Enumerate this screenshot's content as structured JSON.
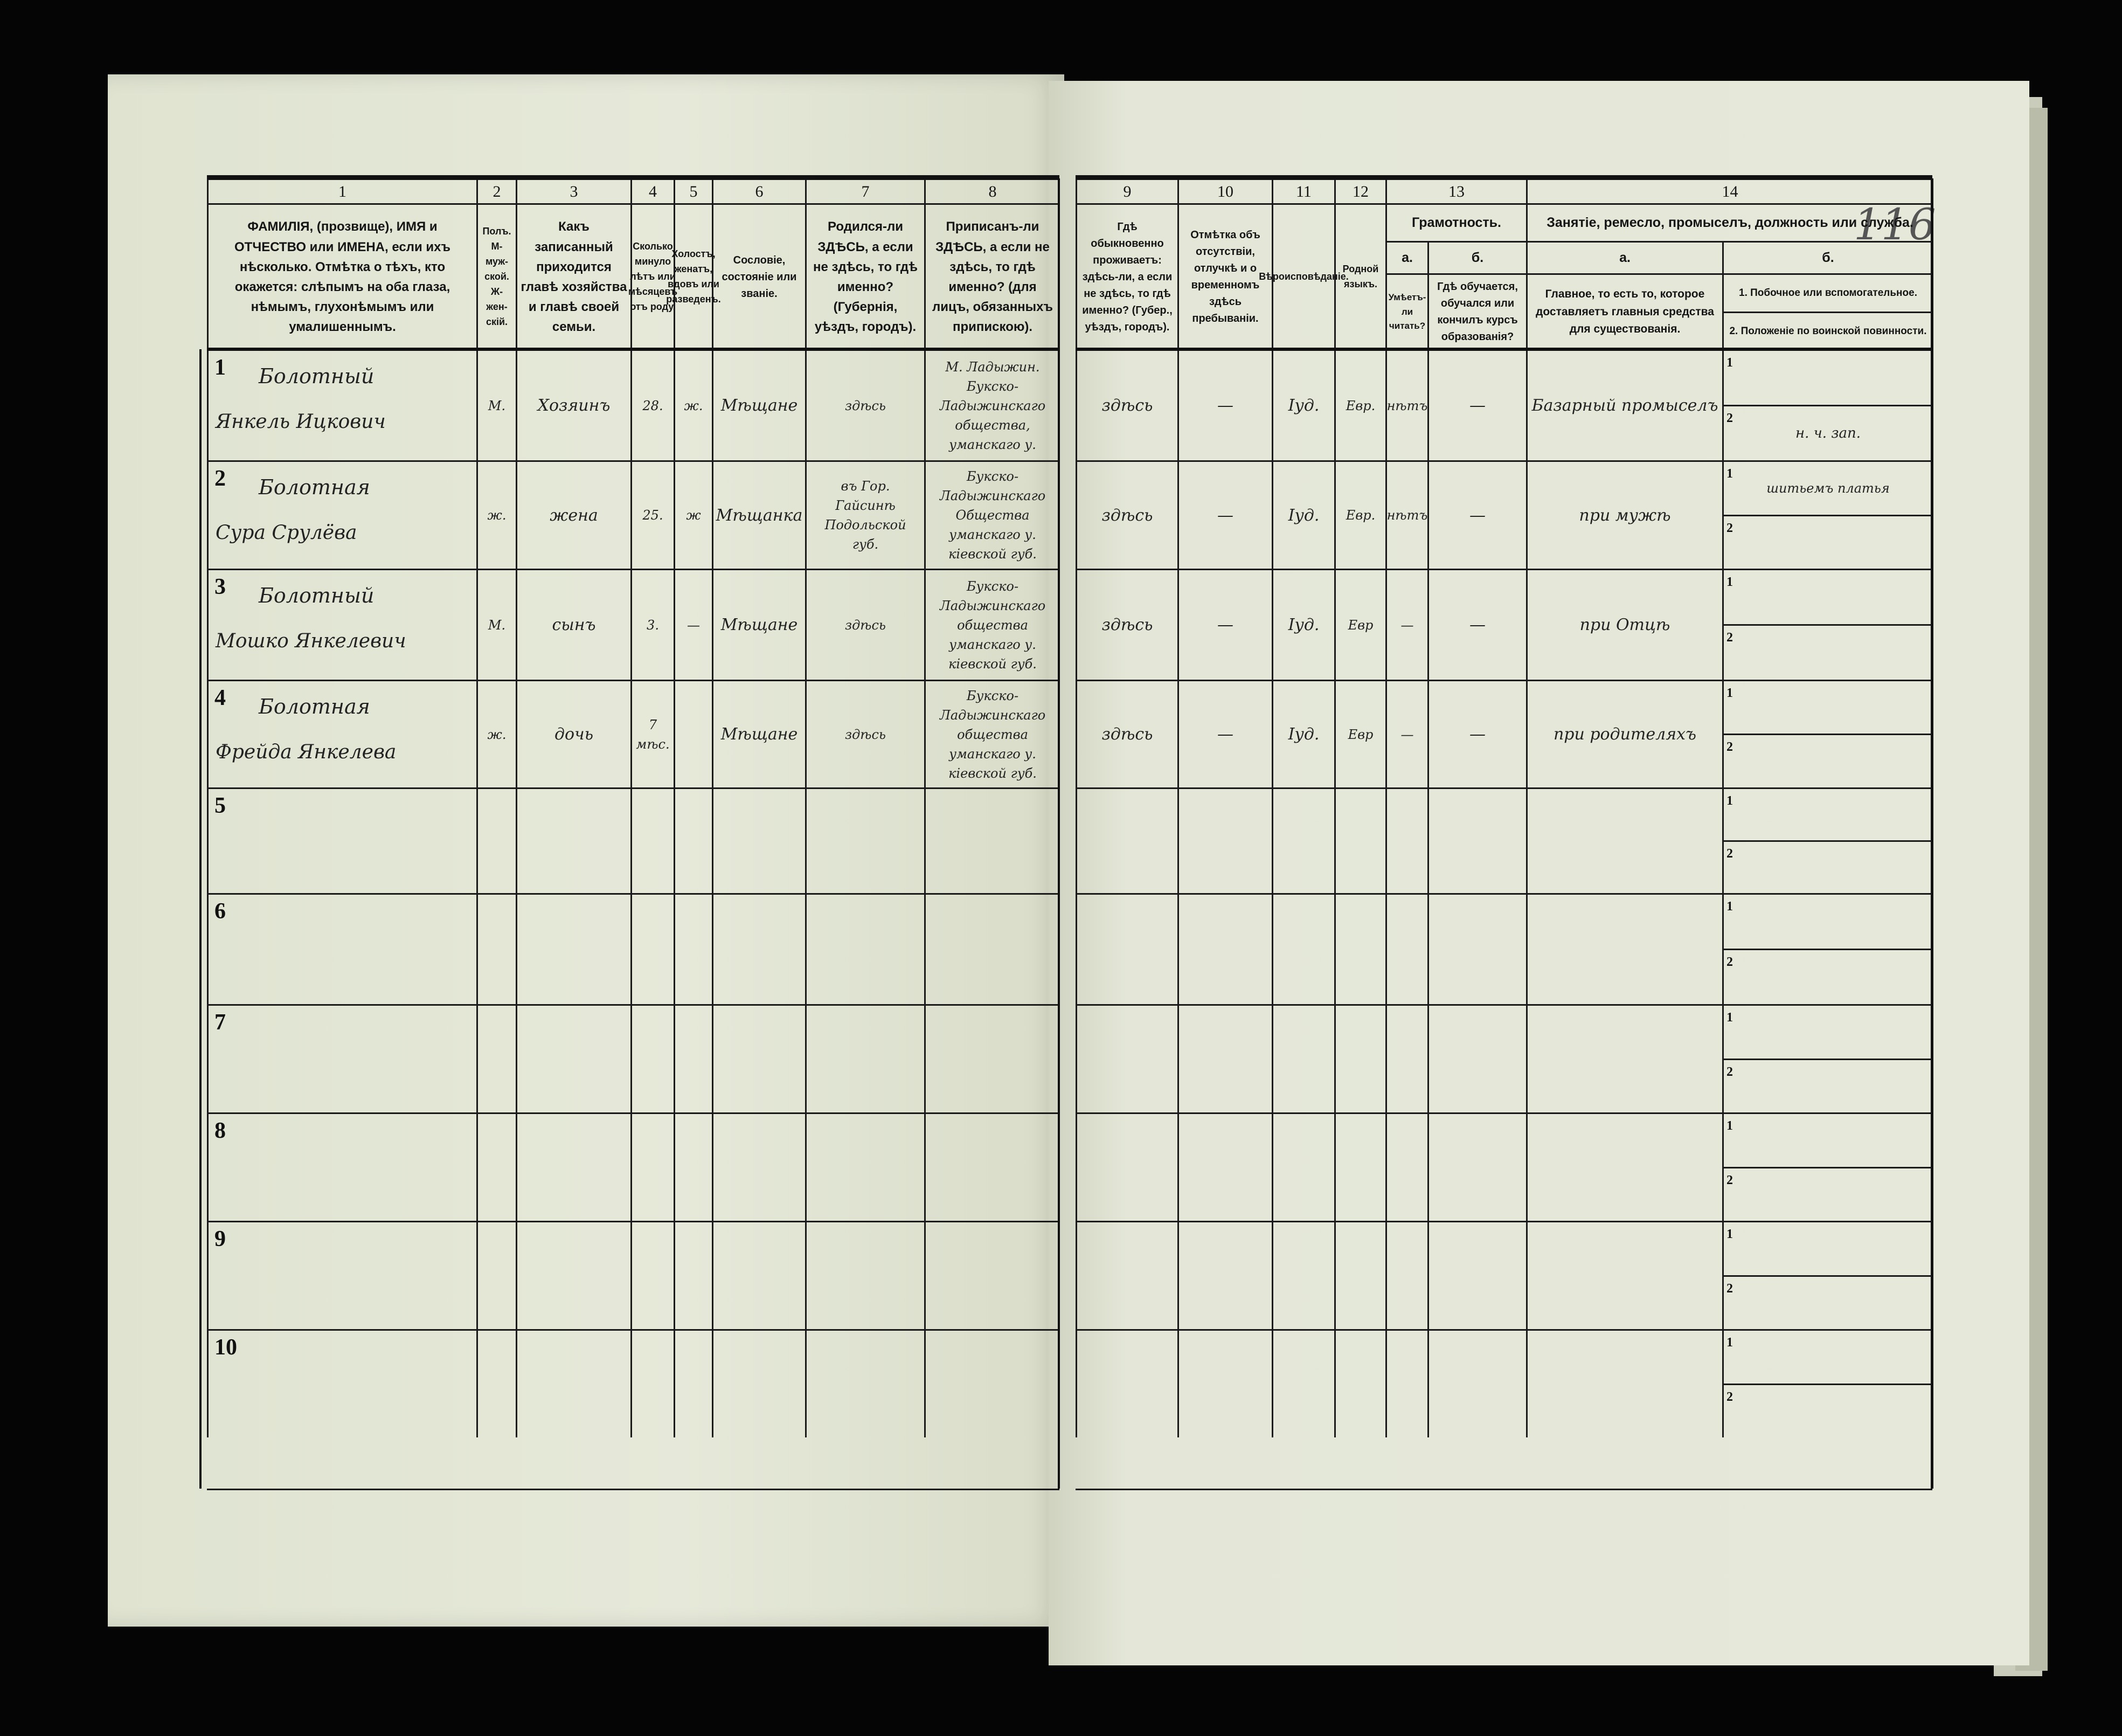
{
  "form": {
    "column_numbers": [
      "1",
      "2",
      "3",
      "4",
      "5",
      "6",
      "7",
      "8",
      "9",
      "10",
      "11",
      "12",
      "13",
      "14"
    ],
    "headers": {
      "c1": "ФАМИЛІЯ, (прозвище), ИМЯ и ОТЧЕСТВО или ИМЕНА, если ихъ нѣсколько. Отмѣтка о тѣхъ, кто окажется: слѣпымъ на оба глаза, нѣмымъ, глухонѣмымъ или умалишеннымъ.",
      "c2": "Полъ. М-муж-ской. Ж-жен-скій.",
      "c3": "Какъ записанный приходится главѣ хозяйства и главѣ своей семьи.",
      "c4": "Сколько минуло лѣтъ или мѣсяцевъ отъ роду.",
      "c5": "Холостъ, женатъ, вдовъ или разведенъ.",
      "c6": "Сословіе, состояніе или званіе.",
      "c7": "Родился-ли ЗДѢСЬ, а если не здѣсь, то гдѣ именно? (Губернія, уѣздъ, городъ).",
      "c8": "Приписанъ-ли ЗДѢСЬ, а если не здѣсь, то гдѣ именно? (для лицъ, обязанныхъ припискою).",
      "c9": "Гдѣ обыкновенно проживаетъ: здѣсь-ли, а если не здѣсь, то гдѣ именно? (Губер., уѣздъ, городъ).",
      "c10": "Отмѣтка объ отсутствіи, отлучкѣ и о временномъ здѣсь пребываніи.",
      "c11": "Вѣроисповѣданіе.",
      "c12": "Родной языкъ.",
      "c13_group": "Грамотность.",
      "c13a_letter": "а.",
      "c13a": "Умѣетъ-ли читать?",
      "c13b_letter": "б.",
      "c13b": "Гдѣ обучается, обучался или кончилъ курсъ образованія?",
      "c14_group": "Занятіе, ремесло, промыселъ, должность или служба.",
      "c14a_letter": "а.",
      "c14a": "Главное, то есть то, которое доставляетъ главныя средства для существованія.",
      "c14b_letter": "б.",
      "c14b1": "1. Побочное или вспомогательное.",
      "c14b2": "2. Положеніе по воинской повинности."
    },
    "page_number": "116",
    "row_numbers": [
      "1",
      "2",
      "3",
      "4",
      "5",
      "6",
      "7",
      "8",
      "9",
      "10"
    ],
    "sub_labels": [
      "1",
      "2"
    ],
    "rows": [
      {
        "surname": "Болотный",
        "name": "Янкель Ицкович",
        "sex": "М.",
        "relation": "Хозяинъ",
        "age": "28.",
        "marital": "ж.",
        "estate": "Мѣщане",
        "birthplace": "здѣсь",
        "registered": "М. Ладыжин. Букско-Ладыжинскаго общества, уманскаго у.",
        "residence": "здѣсь",
        "absence": "—",
        "religion": "Iуд.",
        "language": "Евр.",
        "literacy": "нѣтъ",
        "school": "—",
        "occupation": "Базарный промыселъ",
        "secondary": "",
        "military": "н. ч. зап."
      },
      {
        "surname": "Болотная",
        "name": "Сура Срулёва",
        "sex": "ж.",
        "relation": "жена",
        "age": "25.",
        "marital": "ж",
        "estate": "Мѣщанка",
        "birthplace": "въ Гор. Гайсинѣ Подольской губ.",
        "registered": "Букско-Ладыжинскаго Общества уманскаго у. кіевской губ.",
        "residence": "здѣсь",
        "absence": "—",
        "religion": "Iуд.",
        "language": "Евр.",
        "literacy": "нѣтъ",
        "school": "—",
        "occupation": "при мужѣ",
        "secondary": "шитьемъ платья",
        "military": ""
      },
      {
        "surname": "Болотный",
        "name": "Мошко Янкелевич",
        "sex": "М.",
        "relation": "сынъ",
        "age": "3.",
        "marital": "—",
        "estate": "Мѣщане",
        "birthplace": "здѣсь",
        "registered": "Букско-Ладыжинскаго общества уманскаго у. кіевской губ.",
        "residence": "здѣсь",
        "absence": "—",
        "religion": "Iуд.",
        "language": "Евр",
        "literacy": "—",
        "school": "—",
        "occupation": "при Отцѣ",
        "secondary": "",
        "military": ""
      },
      {
        "surname": "Болотная",
        "name": "Фрейда Янкелева",
        "sex": "ж.",
        "relation": "дочь",
        "age": "7 мѣс.",
        "marital": "",
        "estate": "Мѣщане",
        "birthplace": "здѣсь",
        "registered": "Букско-Ладыжинскаго общества уманскаго у. кіевской губ.",
        "residence": "здѣсь",
        "absence": "—",
        "religion": "Iуд.",
        "language": "Евр",
        "literacy": "—",
        "school": "—",
        "occupation": "при родителяхъ",
        "secondary": "",
        "military": ""
      }
    ]
  }
}
